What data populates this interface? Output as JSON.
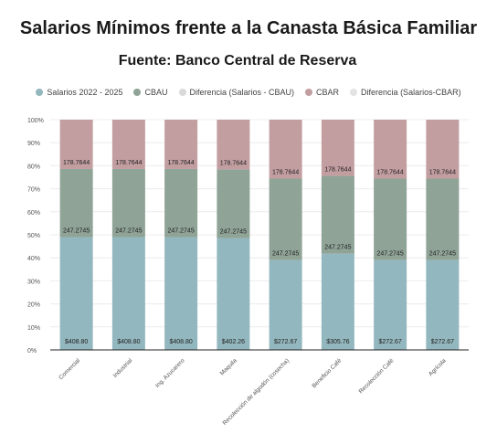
{
  "chart_data": {
    "type": "bar",
    "stacked": "percent",
    "title": "Salarios Mínimos frente a la Canasta Básica Familiar",
    "subtitle": "Fuente: Banco Central de Reserva",
    "legend": [
      {
        "name": "Salarios 2022 - 2025",
        "color": "#93b7be"
      },
      {
        "name": "CBAU",
        "color": "#8fa397"
      },
      {
        "name": "Diferencia (Salarios - CBAU)",
        "color": "#d9d9d9"
      },
      {
        "name": "CBAR",
        "color": "#c39ea1"
      },
      {
        "name": "Diferencia (Salarios-CBAR)",
        "color": "#e3e3e3"
      }
    ],
    "categories": [
      "Comercial",
      "Industrial",
      "Ing. Azucarero",
      "Maquila",
      "Recolección de algodón (cosecha)",
      "Beneficio Café",
      "Recolección Café",
      "Agrícola"
    ],
    "series": [
      {
        "name": "Salarios 2022 - 2025",
        "color": "#93b7be",
        "values": [
          408.8,
          408.8,
          408.8,
          402.26,
          272.67,
          305.76,
          272.67,
          272.67
        ],
        "labels": [
          "$408.80",
          "$408.80",
          "$408.80",
          "$402.26",
          "$272.67",
          "$305.76",
          "$272.67",
          "$272.67"
        ]
      },
      {
        "name": "CBAU",
        "color": "#8fa397",
        "values": [
          247.2745,
          247.2745,
          247.2745,
          247.2745,
          247.2745,
          247.2745,
          247.2745,
          247.2745
        ],
        "labels": [
          "247.2745",
          "247.2745",
          "247.2745",
          "247.2745",
          "247.2745",
          "247.2745",
          "247.2745",
          "247.2745"
        ]
      },
      {
        "name": "CBAR",
        "color": "#c39ea1",
        "values": [
          178.7644,
          178.7644,
          178.7644,
          178.7644,
          178.7644,
          178.7644,
          178.7644,
          178.7644
        ],
        "labels": [
          "178.7644",
          "178.7644",
          "178.7644",
          "178.7644",
          "178.7644",
          "178.7644",
          "178.7644",
          "178.7644"
        ]
      }
    ],
    "y_ticks": [
      "0%",
      "10%",
      "20%",
      "30%",
      "40%",
      "50%",
      "60%",
      "70%",
      "80%",
      "90%",
      "100%"
    ],
    "ylim": [
      0,
      100
    ],
    "grid": true,
    "legend_position": "top-center"
  }
}
